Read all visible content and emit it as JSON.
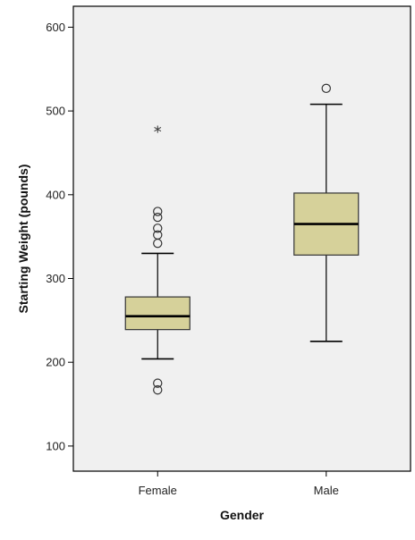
{
  "chart_data": {
    "type": "box",
    "xlabel": "Gender",
    "ylabel": "Starting Weight (pounds)",
    "ylim": [
      70,
      625
    ],
    "yticks": [
      100,
      200,
      300,
      400,
      500,
      600
    ],
    "grid": false,
    "categories": [
      "Female",
      "Male"
    ],
    "box_fill": "#d6d19a",
    "plot_background": "#f0f0f0",
    "boxes": [
      {
        "category": "Female",
        "whisker_low": 204,
        "q1": 239,
        "median": 255,
        "q3": 278,
        "whisker_high": 330,
        "outliers": [
          167,
          175,
          342,
          352,
          360,
          373,
          380
        ],
        "extremes": [
          476
        ]
      },
      {
        "category": "Male",
        "whisker_low": 225,
        "q1": 328,
        "median": 365,
        "q3": 402,
        "whisker_high": 508,
        "outliers": [
          527
        ],
        "extremes": []
      }
    ]
  }
}
